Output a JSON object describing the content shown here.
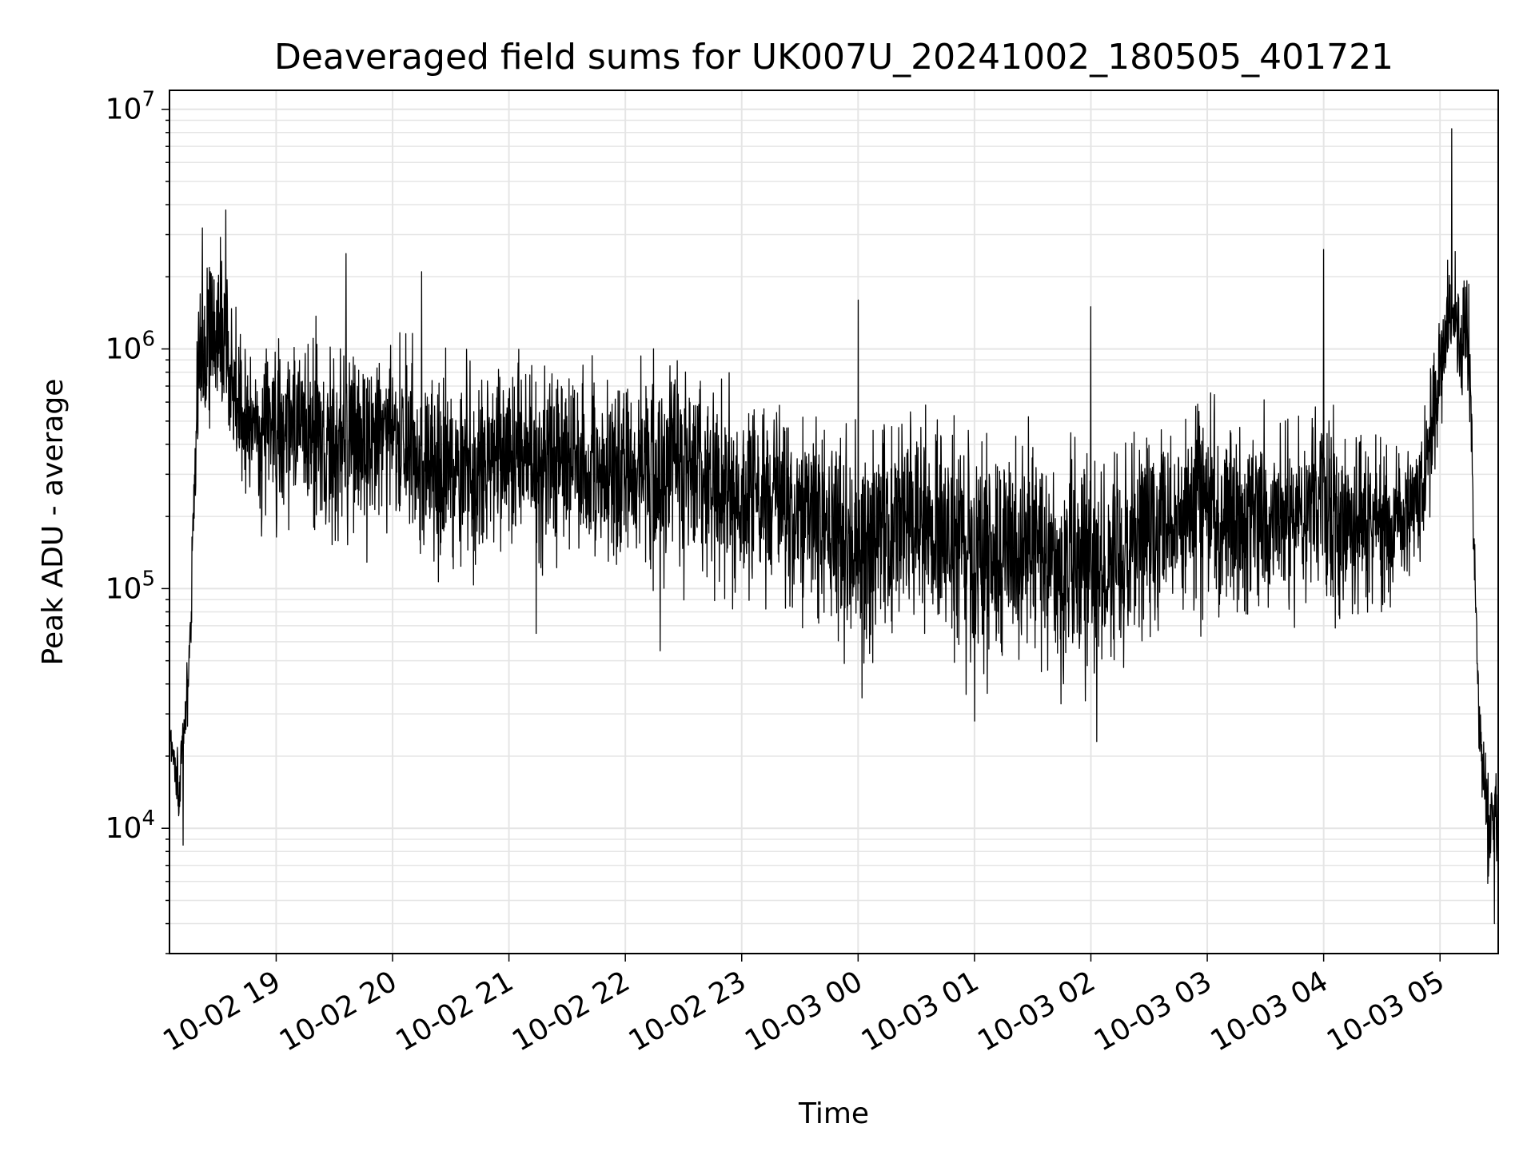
{
  "chart_data": {
    "type": "line",
    "title": "Deaveraged field sums for UK007U_20241002_180505_401721",
    "xlabel": "Time",
    "ylabel": "Peak ADU - average",
    "yscale": "log",
    "ylim": [
      3000,
      12000000
    ],
    "xlim": [
      "2024-10-02 18:05",
      "2024-10-03 05:30"
    ],
    "grid": true,
    "line_color": "#000000",
    "grid_color": "#e5e5e5",
    "x_ticks": [
      {
        "at": "2024-10-02 19:00",
        "label": "10-02 19"
      },
      {
        "at": "2024-10-02 20:00",
        "label": "10-02 20"
      },
      {
        "at": "2024-10-02 21:00",
        "label": "10-02 21"
      },
      {
        "at": "2024-10-02 22:00",
        "label": "10-02 22"
      },
      {
        "at": "2024-10-02 23:00",
        "label": "10-02 23"
      },
      {
        "at": "2024-10-03 00:00",
        "label": "10-03 00"
      },
      {
        "at": "2024-10-03 01:00",
        "label": "10-03 01"
      },
      {
        "at": "2024-10-03 02:00",
        "label": "10-03 02"
      },
      {
        "at": "2024-10-03 03:00",
        "label": "10-03 03"
      },
      {
        "at": "2024-10-03 04:00",
        "label": "10-03 04"
      },
      {
        "at": "2024-10-03 05:00",
        "label": "10-03 05"
      }
    ],
    "y_ticks": [
      {
        "value": 10000,
        "base": "10",
        "exp": "4"
      },
      {
        "value": 100000,
        "base": "10",
        "exp": "5"
      },
      {
        "value": 1000000,
        "base": "10",
        "exp": "6"
      },
      {
        "value": 10000000,
        "base": "10",
        "exp": "7"
      }
    ],
    "envelope": [
      {
        "x": "2024-10-02 18:05",
        "lo": 20000,
        "hi": 30000
      },
      {
        "x": "2024-10-02 18:10",
        "lo": 9000,
        "hi": 25000
      },
      {
        "x": "2024-10-02 18:15",
        "lo": 30000,
        "hi": 70000
      },
      {
        "x": "2024-10-02 18:20",
        "lo": 300000,
        "hi": 3000000
      },
      {
        "x": "2024-10-02 18:30",
        "lo": 400000,
        "hi": 3500000
      },
      {
        "x": "2024-10-02 18:45",
        "lo": 180000,
        "hi": 1200000
      },
      {
        "x": "2024-10-02 19:15",
        "lo": 150000,
        "hi": 1300000
      },
      {
        "x": "2024-10-02 19:30",
        "lo": 120000,
        "hi": 1500000
      },
      {
        "x": "2024-10-02 20:00",
        "lo": 150000,
        "hi": 1200000
      },
      {
        "x": "2024-10-02 20:30",
        "lo": 80000,
        "hi": 1000000
      },
      {
        "x": "2024-10-02 21:00",
        "lo": 120000,
        "hi": 1100000
      },
      {
        "x": "2024-10-02 21:30",
        "lo": 100000,
        "hi": 1000000
      },
      {
        "x": "2024-10-02 22:00",
        "lo": 100000,
        "hi": 900000
      },
      {
        "x": "2024-10-02 22:30",
        "lo": 90000,
        "hi": 1000000
      },
      {
        "x": "2024-10-02 23:00",
        "lo": 80000,
        "hi": 800000
      },
      {
        "x": "2024-10-02 23:30",
        "lo": 60000,
        "hi": 700000
      },
      {
        "x": "2024-10-03 00:00",
        "lo": 40000,
        "hi": 600000
      },
      {
        "x": "2024-10-03 00:30",
        "lo": 60000,
        "hi": 700000
      },
      {
        "x": "2024-10-03 01:00",
        "lo": 35000,
        "hi": 500000
      },
      {
        "x": "2024-10-03 01:30",
        "lo": 40000,
        "hi": 600000
      },
      {
        "x": "2024-10-03 02:00",
        "lo": 30000,
        "hi": 500000
      },
      {
        "x": "2024-10-03 02:30",
        "lo": 50000,
        "hi": 600000
      },
      {
        "x": "2024-10-03 03:00",
        "lo": 60000,
        "hi": 700000
      },
      {
        "x": "2024-10-03 03:30",
        "lo": 60000,
        "hi": 600000
      },
      {
        "x": "2024-10-03 04:00",
        "lo": 70000,
        "hi": 700000
      },
      {
        "x": "2024-10-03 04:30",
        "lo": 70000,
        "hi": 500000
      },
      {
        "x": "2024-10-03 04:50",
        "lo": 100000,
        "hi": 500000
      },
      {
        "x": "2024-10-03 05:05",
        "lo": 700000,
        "hi": 3000000
      },
      {
        "x": "2024-10-03 05:15",
        "lo": 500000,
        "hi": 2000000
      },
      {
        "x": "2024-10-03 05:20",
        "lo": 20000,
        "hi": 40000
      },
      {
        "x": "2024-10-03 05:25",
        "lo": 5000,
        "hi": 20000
      },
      {
        "x": "2024-10-03 05:30",
        "lo": 5000,
        "hi": 20000
      }
    ],
    "spikes": [
      {
        "x": "2024-10-02 18:12",
        "y": 8500
      },
      {
        "x": "2024-10-02 18:22",
        "y": 3200000
      },
      {
        "x": "2024-10-02 18:34",
        "y": 3800000
      },
      {
        "x": "2024-10-02 19:36",
        "y": 2500000
      },
      {
        "x": "2024-10-02 20:15",
        "y": 2100000
      },
      {
        "x": "2024-10-02 21:14",
        "y": 65000
      },
      {
        "x": "2024-10-02 22:18",
        "y": 55000
      },
      {
        "x": "2024-10-03 00:00",
        "y": 1600000
      },
      {
        "x": "2024-10-03 00:02",
        "y": 35000
      },
      {
        "x": "2024-10-03 01:00",
        "y": 28000
      },
      {
        "x": "2024-10-03 02:00",
        "y": 1500000
      },
      {
        "x": "2024-10-03 02:03",
        "y": 23000
      },
      {
        "x": "2024-10-03 04:00",
        "y": 2600000
      },
      {
        "x": "2024-10-03 05:06",
        "y": 8300000
      },
      {
        "x": "2024-10-03 05:28",
        "y": 4000
      }
    ]
  }
}
